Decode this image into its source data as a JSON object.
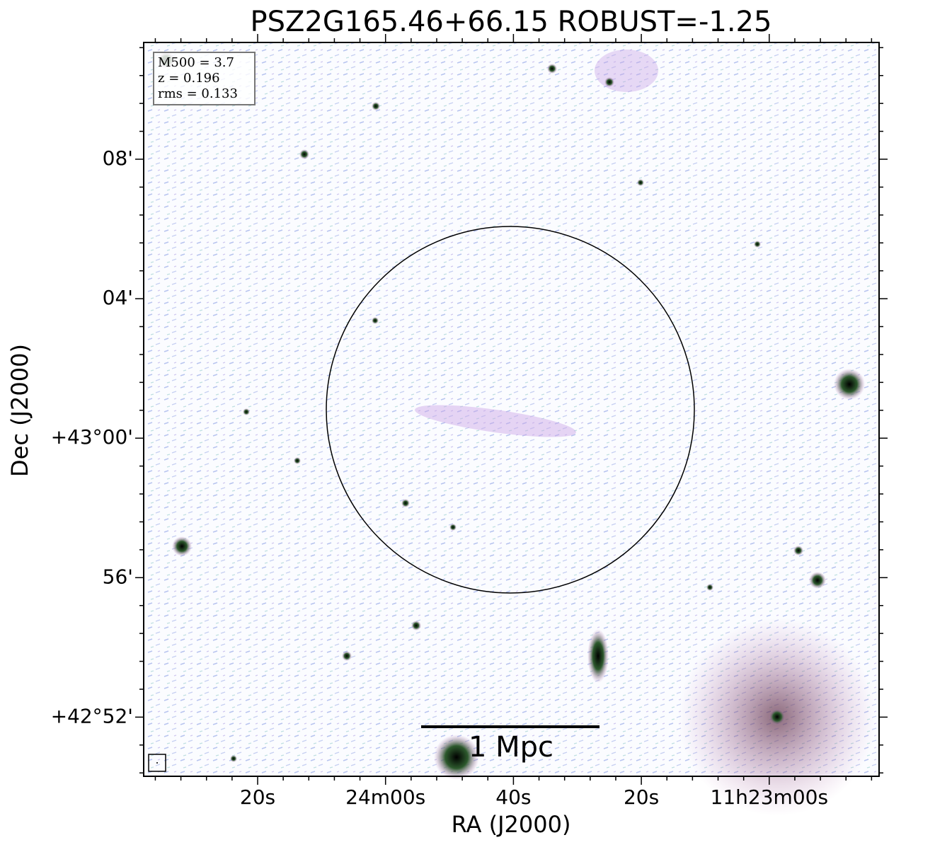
{
  "chart_data": {
    "type": "image",
    "title": "PSZ2G165.46+66.15 ROBUST=-1.25",
    "x_label": "RA (J2000)",
    "y_label": "Dec (J2000)",
    "x_tick_labels": [
      "20s",
      "24m00s",
      "40s",
      "20s",
      "11h23m00s"
    ],
    "y_tick_labels": [
      "08'",
      "04'",
      "+43°00'",
      "56'",
      "+42°52'"
    ],
    "info_box": [
      "M500 = 3.7",
      "z = 0.196",
      "rms = 0.133"
    ],
    "scale_bar_label": "1 Mpc"
  }
}
